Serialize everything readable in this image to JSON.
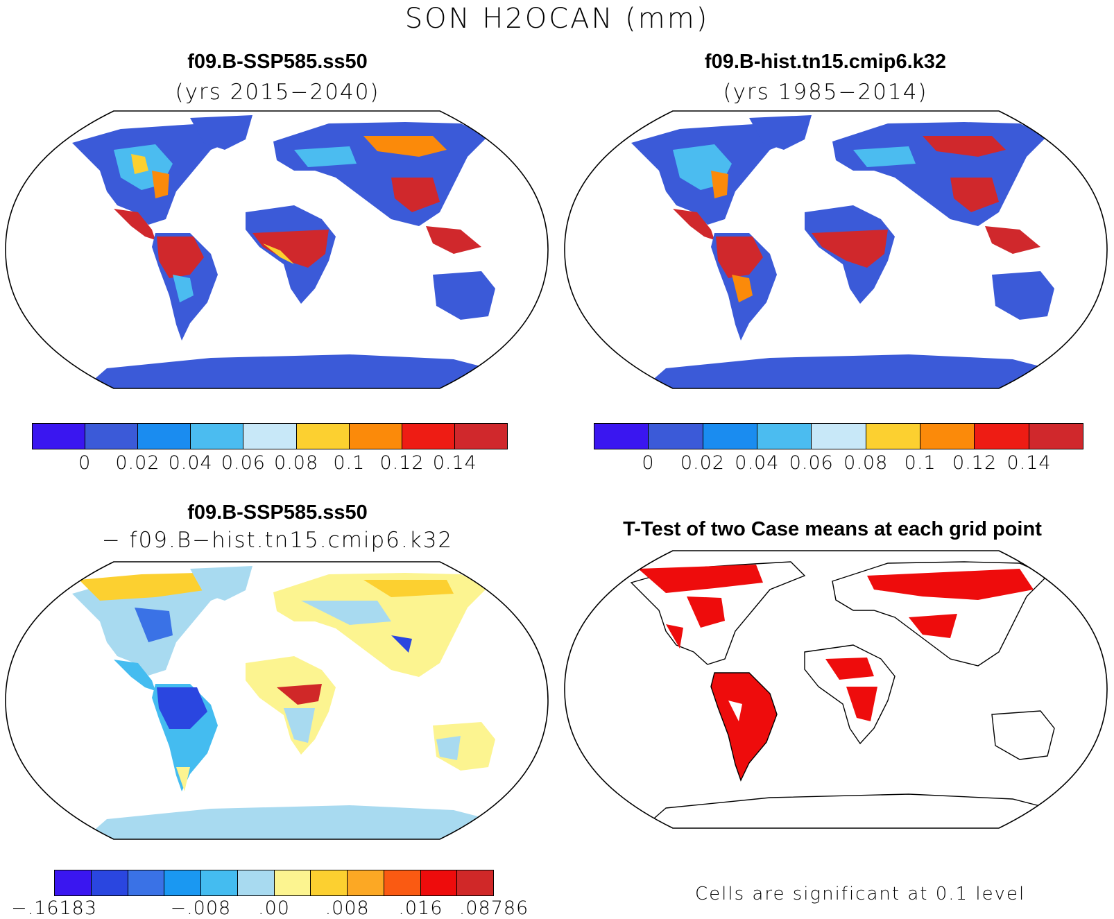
{
  "title": "SON H2OCAN (mm)",
  "panels": [
    {
      "id": "case1",
      "title": "f09.B-SSP585.ss50",
      "subtitle": "(yrs 2015−2040)",
      "colorbar": {
        "colors": [
          "#3a16f0",
          "#3b5ad8",
          "#1a8cf0",
          "#4bbcf0",
          "#c8e8f8",
          "#fcd030",
          "#fb8a0a",
          "#ee1c14",
          "#d0282c"
        ],
        "ticks": [
          "0",
          "0.02",
          "0.04",
          "0.06",
          "0.08",
          "0.1",
          "0.12",
          "0.14"
        ]
      }
    },
    {
      "id": "case2",
      "title": "f09.B-hist.tn15.cmip6.k32",
      "subtitle": "(yrs 1985−2014)",
      "colorbar": {
        "colors": [
          "#3a16f0",
          "#3b5ad8",
          "#1a8cf0",
          "#4bbcf0",
          "#c8e8f8",
          "#fcd030",
          "#fb8a0a",
          "#ee1c14",
          "#d0282c"
        ],
        "ticks": [
          "0",
          "0.02",
          "0.04",
          "0.06",
          "0.08",
          "0.1",
          "0.12",
          "0.14"
        ]
      }
    },
    {
      "id": "diff",
      "title": "f09.B-SSP585.ss50",
      "subtitle": "− f09.B−hist.tn15.cmip6.k32",
      "colorbar": {
        "colors": [
          "#3a16f0",
          "#2a46e0",
          "#3a72e6",
          "#1a98f2",
          "#44bcf0",
          "#a8daf0",
          "#fcf490",
          "#fcd030",
          "#fca824",
          "#fa5a12",
          "#ee0c0c",
          "#d02828"
        ],
        "ticks": [
          "−.16183",
          "−.008",
          ".00",
          ".008",
          ".016",
          ".08786"
        ]
      }
    },
    {
      "id": "ttest",
      "title": "T-Test of two Case means at each grid point",
      "note": "Cells are significant at 0.1 level"
    }
  ],
  "colors": {
    "land_low": "#3b5ad8",
    "land_mid": "#4bbcf0",
    "land_high": "#d0282c",
    "significant": "#ee0c0c",
    "antarctica_diff": "#a8daf0"
  }
}
